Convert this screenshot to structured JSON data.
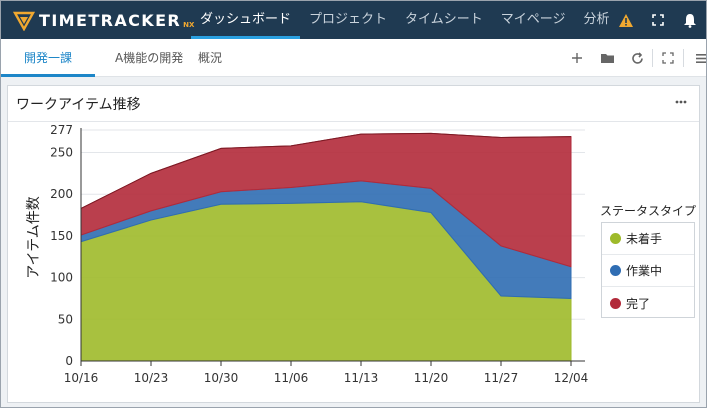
{
  "app": {
    "logo_text": "TIMETRACKER",
    "logo_suffix": "NX"
  },
  "nav": [
    {
      "label": "ダッシュボード",
      "active": true
    },
    {
      "label": "プロジェクト",
      "active": false
    },
    {
      "label": "タイムシート",
      "active": false
    },
    {
      "label": "マイページ",
      "active": false
    },
    {
      "label": "分析",
      "active": false
    }
  ],
  "top_icons": [
    "warning-icon",
    "fullscreen-icon",
    "bell-icon"
  ],
  "tabs": [
    {
      "label": "開発一課",
      "active": true
    },
    {
      "label": "A機能の開発",
      "active": false
    },
    {
      "label": "概況",
      "active": false
    }
  ],
  "tab_tools": [
    "add-icon",
    "folder-icon",
    "refresh-icon",
    "expand-icon",
    "list-icon"
  ],
  "panel": {
    "title": "ワークアイテム推移",
    "menu": "more-icon"
  },
  "colors": {
    "未着手": "#9eba2a",
    "作業中": "#2f6db3",
    "完了": "#b22a3a"
  },
  "chart_data": {
    "type": "area",
    "stacked": true,
    "x": [
      "10/16",
      "10/23",
      "10/30",
      "11/06",
      "11/13",
      "11/20",
      "11/27",
      "12/04"
    ],
    "series": [
      {
        "name": "未着手",
        "values": [
          143,
          169,
          188,
          189,
          191,
          178,
          78,
          75
        ]
      },
      {
        "name": "作業中",
        "values": [
          8,
          11,
          15,
          19,
          25,
          29,
          60,
          38
        ]
      },
      {
        "name": "完了",
        "values": [
          32,
          45,
          52,
          50,
          56,
          66,
          130,
          156
        ]
      }
    ],
    "ylabel": "アイテム件数",
    "yticks": [
      0,
      50,
      100,
      150,
      200,
      250,
      277
    ],
    "ylim": [
      0,
      277
    ],
    "legend_title": "ステータスタイプ",
    "legend_position": "right",
    "grid": true
  }
}
